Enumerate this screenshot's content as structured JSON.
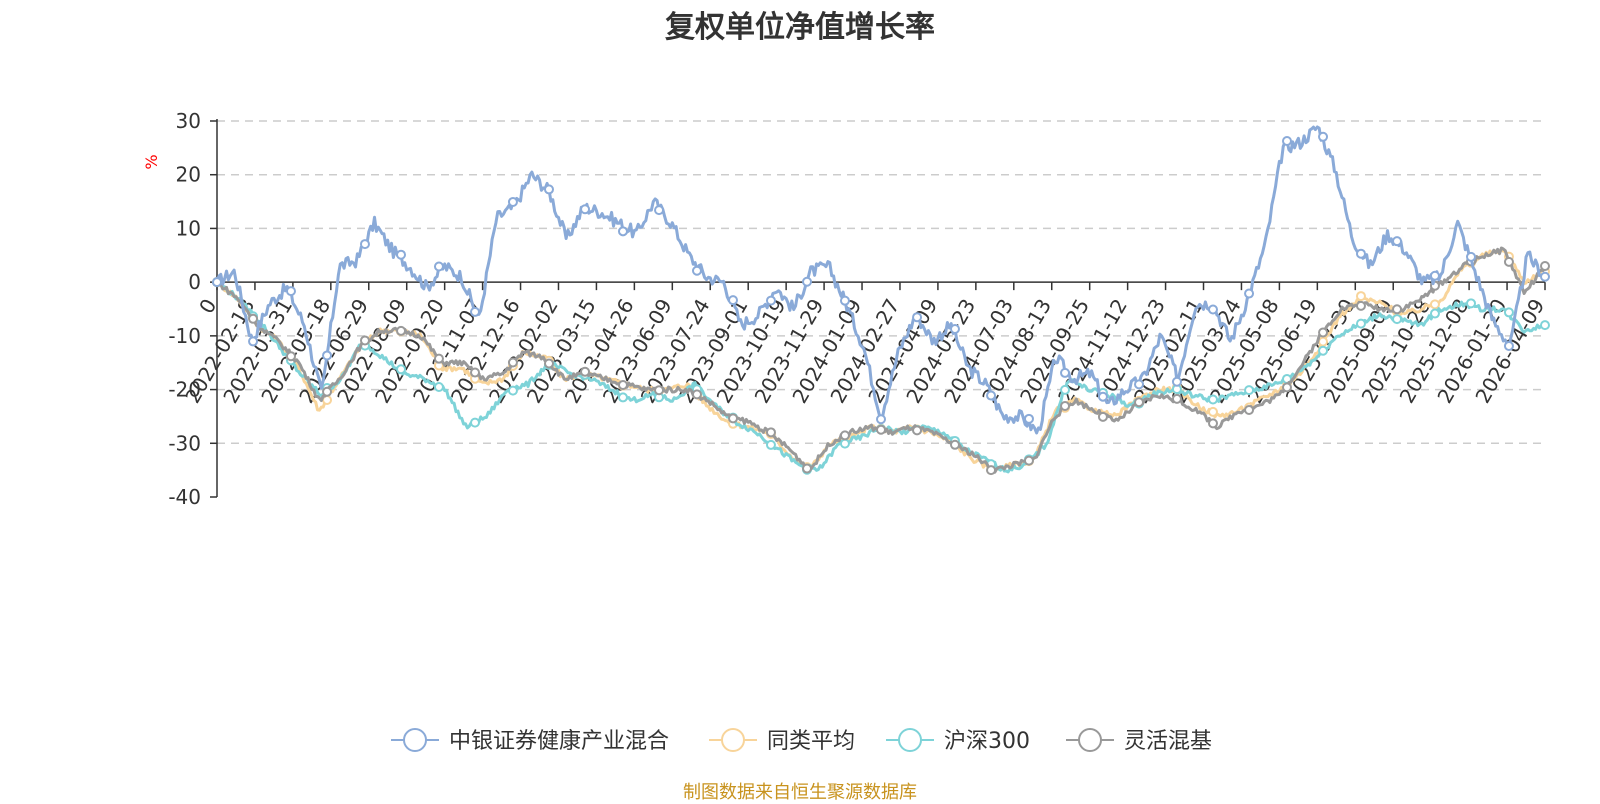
{
  "title": "复权单位净值增长率",
  "source_note": "制图数据来自恒生聚源数据库",
  "colors": {
    "fund": "#8aaad8",
    "peer_avg": "#f8d49a",
    "csi300": "#7ed3d8",
    "flexible": "#999999",
    "axis": "#333333",
    "grid": "#cccccc",
    "unit": "#ff0000",
    "source": "#c8931e"
  },
  "chart_data": {
    "type": "line",
    "title": "复权单位净值增长率",
    "ylabel": "%",
    "ylim": [
      -40,
      30
    ],
    "yticks": [
      30,
      20,
      10,
      0,
      -10,
      -20,
      -30,
      -40
    ],
    "grid": true,
    "legend_position": "bottom",
    "x_tick_labels": [
      "0",
      "2022-02-18",
      "2022-03-31",
      "2022-05-18",
      "2022-06-29",
      "2022-08-09",
      "2022-09-20",
      "2022-11-07",
      "2022-12-16",
      "2023-02-02",
      "2023-03-15",
      "2023-04-26",
      "2023-06-09",
      "2023-07-24",
      "2023-09-01",
      "2023-10-19",
      "2023-11-29",
      "2024-01-09",
      "2024-02-27",
      "2024-04-09",
      "2024-05-23",
      "2024-07-03",
      "2024-08-13",
      "2024-09-25",
      "2024-11-12",
      "2024-12-23",
      "2025-02-11",
      "2025-03-24",
      "2025-05-08",
      "2025-06-19",
      "2025-07-30",
      "2025-09-09",
      "2025-10-28",
      "2025-12-08",
      "2026-01-20",
      "2026-04-09"
    ],
    "series": [
      {
        "name": "中银证券健康产业混合",
        "values": [
          0,
          2,
          -11,
          -4,
          -1,
          -8,
          -21,
          3,
          4,
          11,
          6,
          3,
          -1,
          3,
          1,
          -7,
          12,
          14,
          20,
          17,
          8,
          14,
          13,
          11,
          9,
          15,
          11,
          5,
          1,
          0,
          -8,
          -6,
          -1,
          -5,
          2,
          3,
          -4,
          -12,
          -25,
          -13,
          -6,
          -11,
          -8,
          -16,
          -19,
          -25,
          -25,
          -28,
          -14,
          -18,
          -17,
          -23,
          -20,
          -18,
          -10,
          -18,
          -4,
          -4,
          -11,
          -3,
          7,
          25,
          26,
          29,
          21,
          8,
          3,
          9,
          6,
          0,
          1,
          11,
          2,
          -7,
          -12,
          5,
          1
        ]
      },
      {
        "name": "同类平均",
        "values": [
          0,
          -3,
          -8,
          -11,
          -16,
          -24,
          -18,
          -12,
          -9,
          -9,
          -10,
          -16,
          -16,
          -19,
          -18,
          -13,
          -14,
          -18,
          -17,
          -18,
          -19,
          -20,
          -20,
          -19,
          -23,
          -26,
          -27,
          -28,
          -32,
          -35,
          -30,
          -29,
          -27,
          -28,
          -27,
          -28,
          -30,
          -33,
          -35,
          -34,
          -33,
          -24,
          -22,
          -24,
          -25,
          -22,
          -20,
          -20,
          -23,
          -25,
          -24,
          -22,
          -20,
          -17,
          -12,
          -6,
          -3,
          -4,
          -6,
          -5,
          -3,
          3,
          5,
          6,
          0,
          2
        ]
      },
      {
        "name": "沪深300",
        "values": [
          0,
          -3,
          -7,
          -12,
          -17,
          -21,
          -18,
          -11,
          -14,
          -17,
          -18,
          -20,
          -27,
          -25,
          -20,
          -19,
          -15,
          -17,
          -18,
          -20,
          -22,
          -21,
          -22,
          -19,
          -23,
          -26,
          -28,
          -31,
          -34,
          -35,
          -30,
          -29,
          -27,
          -28,
          -27,
          -28,
          -31,
          -33,
          -35,
          -34,
          -30,
          -18,
          -20,
          -21,
          -23,
          -21,
          -20,
          -21,
          -22,
          -21,
          -20,
          -19,
          -17,
          -14,
          -10,
          -8,
          -6,
          -7,
          -8,
          -5,
          -4,
          -5,
          -5,
          -9,
          -8
        ]
      },
      {
        "name": "灵活混基",
        "values": [
          0,
          -3,
          -8,
          -11,
          -15,
          -22,
          -18,
          -12,
          -9,
          -9,
          -10,
          -15,
          -15,
          -18,
          -17,
          -13,
          -14,
          -18,
          -17,
          -18,
          -19,
          -20,
          -20,
          -20,
          -22,
          -25,
          -26,
          -28,
          -31,
          -35,
          -30,
          -28,
          -27,
          -28,
          -27,
          -28,
          -30,
          -32,
          -35,
          -34,
          -33,
          -25,
          -22,
          -24,
          -26,
          -23,
          -21,
          -22,
          -24,
          -27,
          -24,
          -23,
          -21,
          -16,
          -10,
          -5,
          -4,
          -5,
          -5,
          -3,
          0,
          3,
          5,
          6,
          -2,
          3
        ]
      }
    ]
  }
}
